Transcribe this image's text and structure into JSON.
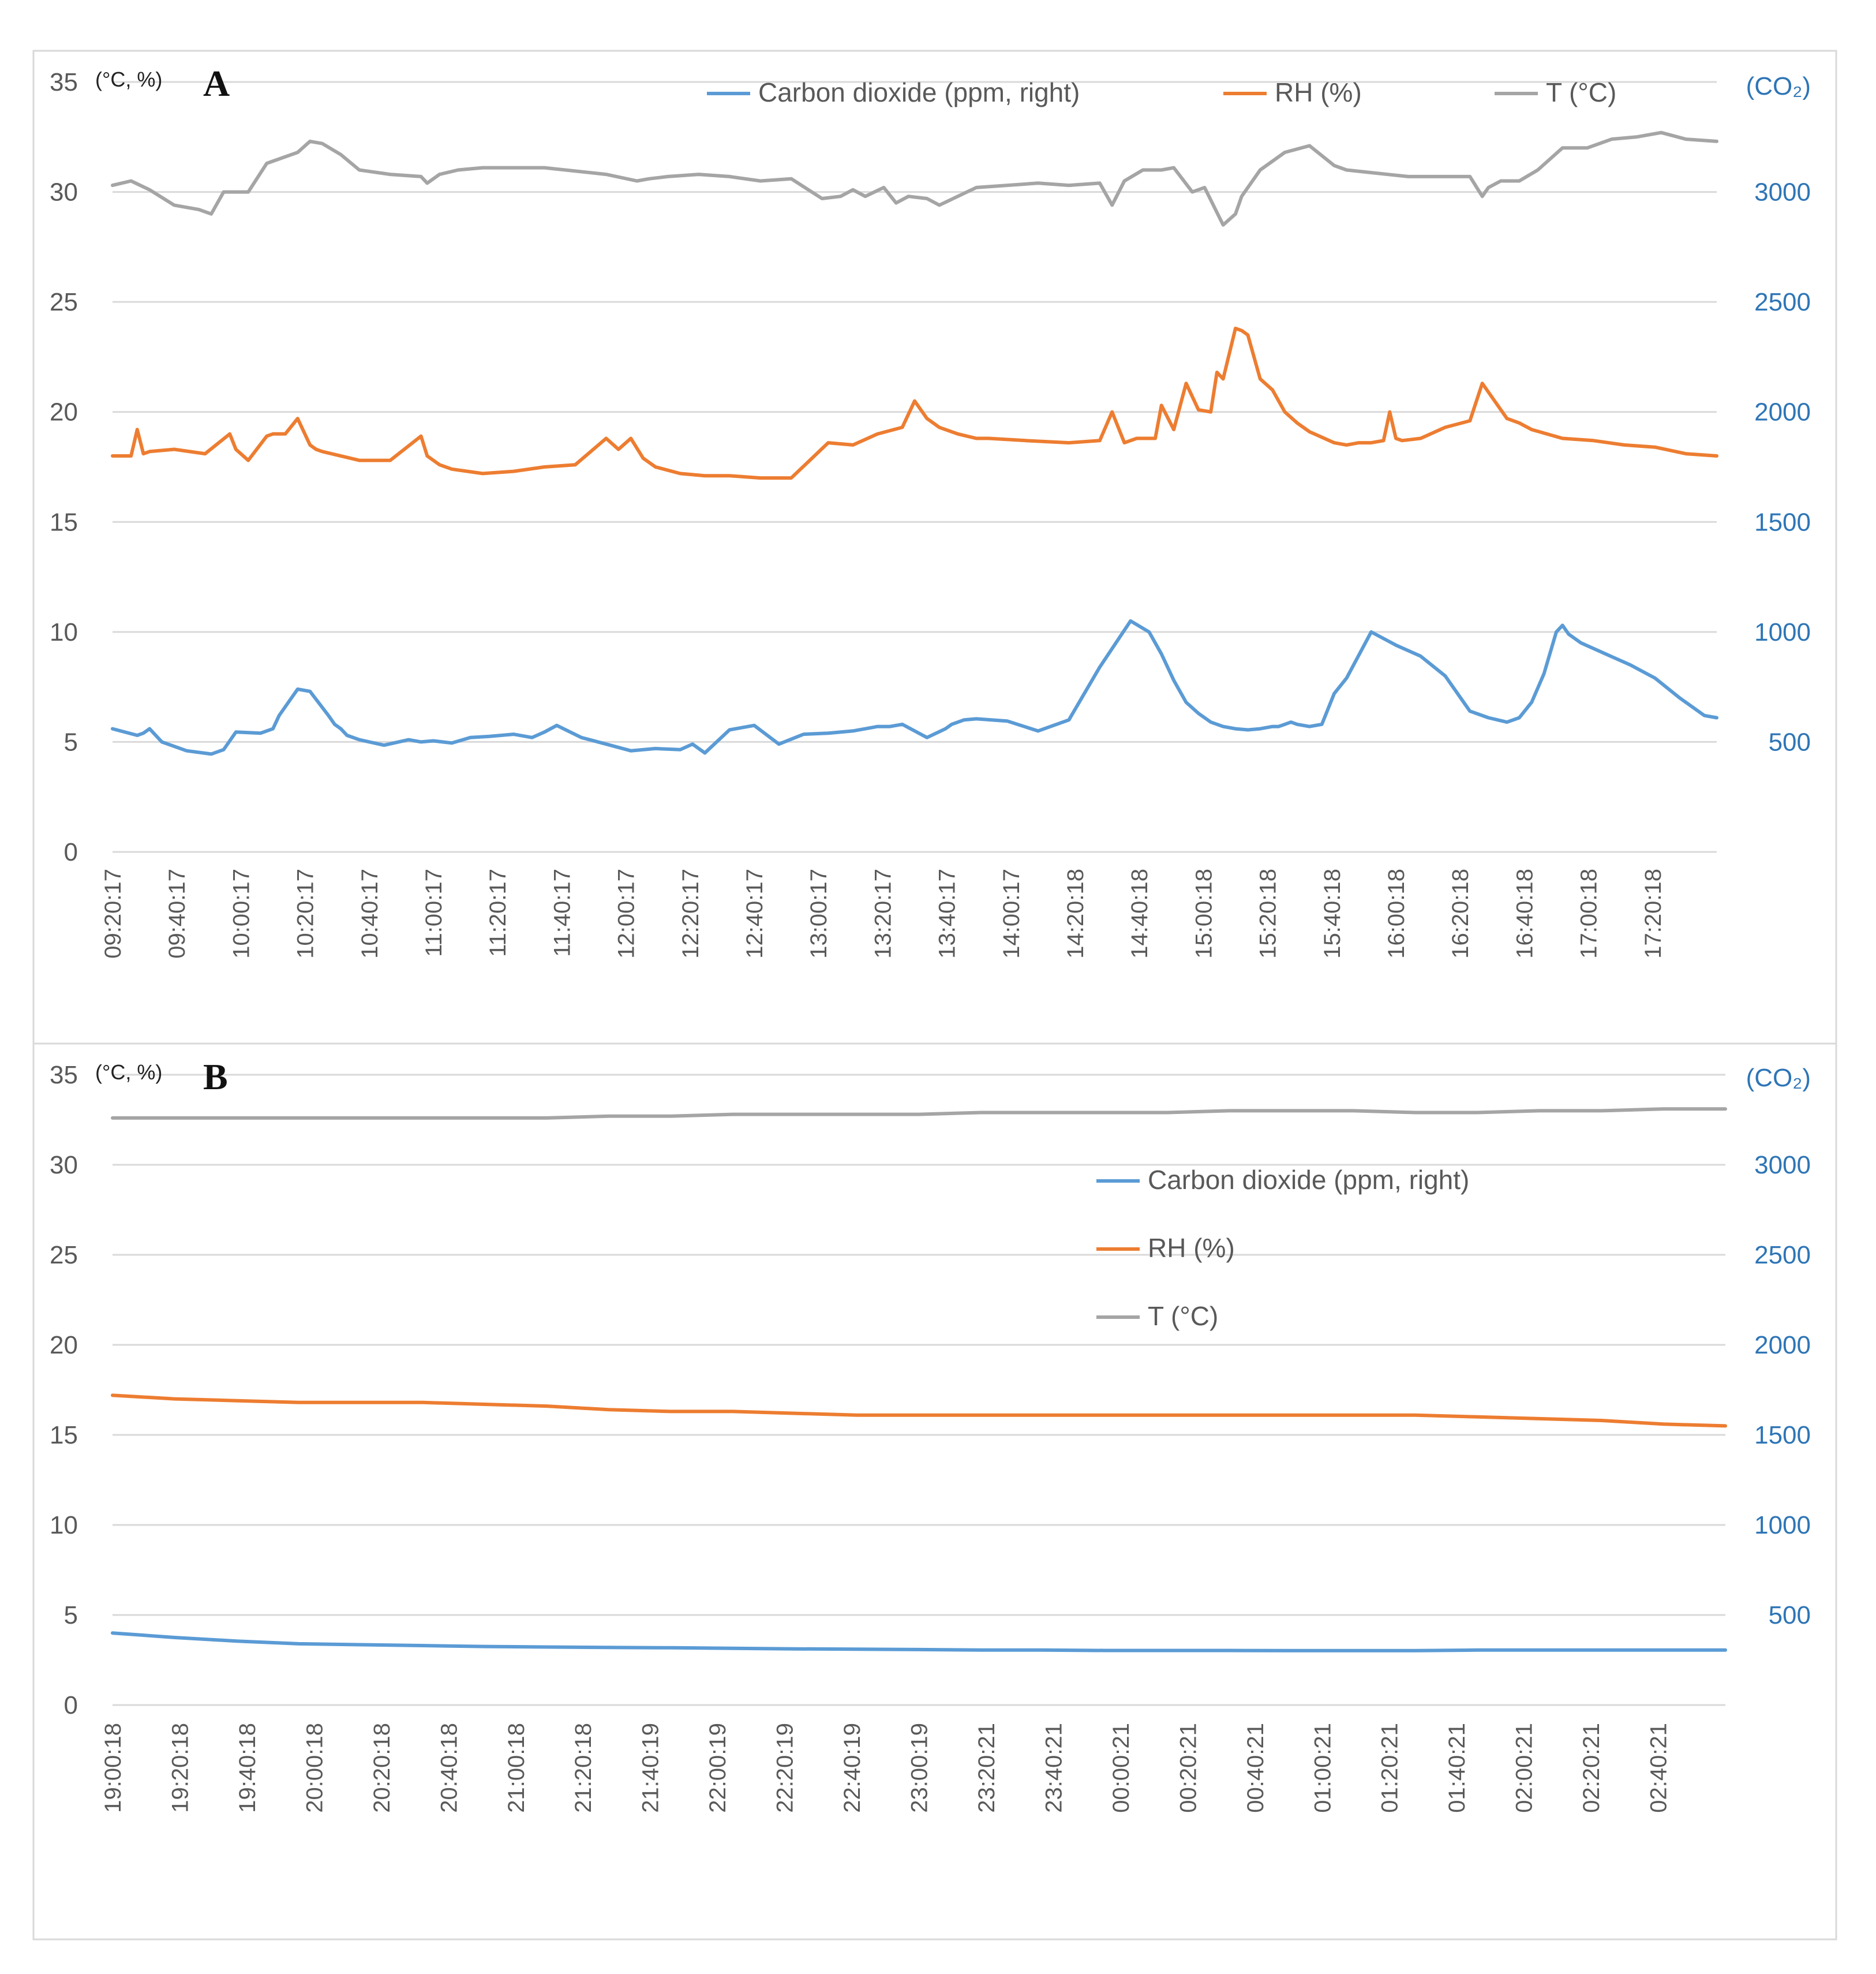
{
  "colors": {
    "co2": "#5B9BD5",
    "rh": "#ED7D31",
    "t": "#A5A5A5",
    "grid": "#D9D9D9",
    "left_axis": "#595959",
    "right_axis": "#2E75B6"
  },
  "chart_data": [
    {
      "type": "line",
      "panel_label": "A",
      "left_unit_label": "(°C, %)",
      "right_unit_label": "(CO₂)",
      "left_ticks": [
        "0",
        "5",
        "10",
        "15",
        "20",
        "25",
        "30",
        "35"
      ],
      "right_ticks": [
        "500",
        "1000",
        "1500",
        "2000",
        "2500",
        "3000"
      ],
      "ylim_left": [
        0,
        35
      ],
      "ylim_right": [
        0,
        3500
      ],
      "x_range": [
        0,
        520
      ],
      "x_unit": "minutes since 09:20:17",
      "x_ticks": [
        "09:20:17",
        "09:40:17",
        "10:00:17",
        "10:20:17",
        "10:40:17",
        "11:00:17",
        "11:20:17",
        "11:40:17",
        "12:00:17",
        "12:20:17",
        "12:40:17",
        "13:00:17",
        "13:20:17",
        "13:40:17",
        "14:00:17",
        "14:20:18",
        "14:40:18",
        "15:00:18",
        "15:20:18",
        "15:40:18",
        "16:00:18",
        "16:20:18",
        "16:40:18",
        "17:00:18",
        "17:20:18"
      ],
      "legend": [
        "Carbon dioxide (ppm, right)",
        "RH (%)",
        "T (°C)"
      ],
      "legend_position": "top-center",
      "series": [
        {
          "name": "Carbon dioxide (ppm, right)",
          "axis": "right",
          "color": "#5B9BD5",
          "x": [
            0,
            8,
            10,
            12,
            16,
            24,
            32,
            36,
            40,
            48,
            52,
            54,
            58,
            60,
            64,
            70,
            72,
            74,
            76,
            80,
            88,
            96,
            100,
            104,
            110,
            116,
            122,
            130,
            136,
            140,
            144,
            152,
            160,
            168,
            176,
            184,
            188,
            192,
            200,
            208,
            216,
            224,
            232,
            240,
            244,
            248,
            252,
            256,
            264,
            270,
            272,
            276,
            280,
            290,
            300,
            310,
            320,
            330,
            336,
            340,
            344,
            348,
            352,
            356,
            360,
            364,
            368,
            372,
            376,
            378,
            380,
            382,
            384,
            388,
            392,
            396,
            400,
            408,
            416,
            424,
            432,
            436,
            440,
            446,
            452,
            456,
            460,
            464,
            468,
            470,
            472,
            476,
            484,
            492,
            500,
            508,
            516,
            520
          ],
          "values": [
            560,
            530,
            540,
            560,
            500,
            460,
            445,
            465,
            545,
            540,
            560,
            620,
            700,
            740,
            730,
            620,
            580,
            560,
            530,
            510,
            485,
            510,
            500,
            505,
            495,
            520,
            525,
            535,
            520,
            545,
            575,
            520,
            490,
            460,
            470,
            465,
            490,
            450,
            555,
            575,
            490,
            535,
            540,
            550,
            560,
            570,
            570,
            580,
            520,
            560,
            580,
            600,
            605,
            595,
            550,
            600,
            840,
            1050,
            1000,
            900,
            780,
            680,
            630,
            590,
            570,
            560,
            555,
            560,
            570,
            570,
            580,
            590,
            580,
            570,
            580,
            720,
            790,
            1000,
            940,
            890,
            800,
            720,
            640,
            610,
            590,
            610,
            680,
            810,
            1000,
            1030,
            990,
            950,
            900,
            850,
            790,
            700,
            620,
            610
          ]
        },
        {
          "name": "RH (%)",
          "axis": "left",
          "color": "#ED7D31",
          "x": [
            0,
            6,
            8,
            10,
            12,
            20,
            30,
            38,
            40,
            44,
            50,
            52,
            56,
            60,
            64,
            66,
            68,
            74,
            80,
            90,
            100,
            102,
            106,
            110,
            120,
            130,
            140,
            150,
            160,
            164,
            168,
            172,
            176,
            184,
            192,
            200,
            210,
            220,
            232,
            240,
            248,
            256,
            260,
            264,
            268,
            274,
            280,
            284,
            296,
            310,
            320,
            324,
            328,
            332,
            338,
            340,
            344,
            348,
            352,
            356,
            358,
            360,
            364,
            366,
            368,
            372,
            376,
            380,
            384,
            388,
            396,
            400,
            404,
            408,
            412,
            414,
            416,
            418,
            424,
            432,
            440,
            444,
            448,
            452,
            456,
            460,
            470,
            480,
            490,
            500,
            510,
            520
          ],
          "values": [
            18.0,
            18.0,
            19.2,
            18.1,
            18.2,
            18.3,
            18.1,
            19.0,
            18.3,
            17.8,
            18.9,
            19.0,
            19.0,
            19.7,
            18.5,
            18.3,
            18.2,
            18.0,
            17.8,
            17.8,
            18.9,
            18.0,
            17.6,
            17.4,
            17.2,
            17.3,
            17.5,
            17.6,
            18.8,
            18.3,
            18.8,
            17.9,
            17.5,
            17.2,
            17.1,
            17.1,
            17.0,
            17.0,
            18.6,
            18.5,
            19.0,
            19.3,
            20.5,
            19.7,
            19.3,
            19.0,
            18.8,
            18.8,
            18.7,
            18.6,
            18.7,
            20.0,
            18.6,
            18.8,
            18.8,
            20.3,
            19.2,
            21.3,
            20.1,
            20.0,
            21.8,
            21.5,
            23.8,
            23.7,
            23.5,
            21.5,
            21.0,
            20.0,
            19.5,
            19.1,
            18.6,
            18.5,
            18.6,
            18.6,
            18.7,
            20.0,
            18.8,
            18.7,
            18.8,
            19.3,
            19.6,
            21.3,
            20.5,
            19.7,
            19.5,
            19.2,
            18.8,
            18.7,
            18.5,
            18.4,
            18.1,
            18.0
          ]
        },
        {
          "name": "T (°C)",
          "axis": "left",
          "color": "#A5A5A5",
          "x": [
            0,
            6,
            12,
            20,
            28,
            32,
            36,
            44,
            50,
            60,
            64,
            68,
            74,
            80,
            90,
            100,
            102,
            106,
            112,
            120,
            140,
            160,
            170,
            174,
            180,
            190,
            200,
            210,
            220,
            230,
            236,
            240,
            244,
            250,
            254,
            258,
            264,
            268,
            280,
            290,
            300,
            310,
            320,
            324,
            328,
            334,
            340,
            344,
            350,
            354,
            360,
            364,
            366,
            372,
            380,
            388,
            396,
            400,
            420,
            430,
            440,
            444,
            446,
            450,
            456,
            462,
            470,
            478,
            486,
            494,
            502,
            510,
            520
          ],
          "values": [
            30.3,
            30.5,
            30.1,
            29.4,
            29.2,
            29.0,
            30.0,
            30.0,
            31.3,
            31.8,
            32.3,
            32.2,
            31.7,
            31.0,
            30.8,
            30.7,
            30.4,
            30.8,
            31.0,
            31.1,
            31.1,
            30.8,
            30.5,
            30.6,
            30.7,
            30.8,
            30.7,
            30.5,
            30.6,
            29.7,
            29.8,
            30.1,
            29.8,
            30.2,
            29.5,
            29.8,
            29.7,
            29.4,
            30.2,
            30.3,
            30.4,
            30.3,
            30.4,
            29.4,
            30.5,
            31.0,
            31.0,
            31.1,
            30.0,
            30.2,
            28.5,
            29.0,
            29.8,
            31.0,
            31.8,
            32.1,
            31.2,
            31.0,
            30.7,
            30.7,
            30.7,
            29.8,
            30.2,
            30.5,
            30.5,
            31.0,
            32.0,
            32.0,
            32.4,
            32.5,
            32.7,
            32.4,
            32.3
          ]
        }
      ]
    },
    {
      "type": "line",
      "panel_label": "B",
      "left_unit_label": "(°C, %)",
      "right_unit_label": "(CO₂)",
      "left_ticks": [
        "0",
        "5",
        "10",
        "15",
        "20",
        "25",
        "30",
        "35"
      ],
      "right_ticks": [
        "500",
        "1000",
        "1500",
        "2000",
        "2500",
        "3000"
      ],
      "ylim_left": [
        0,
        35
      ],
      "ylim_right": [
        0,
        3500
      ],
      "x_range": [
        0,
        520
      ],
      "x_unit": "minutes since 19:00:18",
      "x_ticks": [
        "19:00:18",
        "19:20:18",
        "19:40:18",
        "20:00:18",
        "20:20:18",
        "20:40:18",
        "21:00:18",
        "21:20:18",
        "21:40:19",
        "22:00:19",
        "22:20:19",
        "22:40:19",
        "23:00:19",
        "23:20:21",
        "23:40:21",
        "00:00:21",
        "00:20:21",
        "00:40:21",
        "01:00:21",
        "01:20:21",
        "01:40:21",
        "02:00:21",
        "02:20:21",
        "02:40:21"
      ],
      "legend": [
        "Carbon dioxide (ppm, right)",
        "RH (%)",
        "T (°C)"
      ],
      "legend_position": "center-right",
      "series": [
        {
          "name": "Carbon dioxide (ppm, right)",
          "axis": "right",
          "color": "#5B9BD5",
          "x": [
            0,
            20,
            40,
            60,
            80,
            100,
            120,
            140,
            160,
            180,
            200,
            220,
            240,
            260,
            280,
            300,
            320,
            340,
            360,
            380,
            400,
            420,
            440,
            460,
            480,
            500,
            520
          ],
          "values": [
            400,
            375,
            355,
            340,
            335,
            330,
            325,
            322,
            320,
            318,
            315,
            312,
            310,
            308,
            305,
            305,
            303,
            303,
            303,
            302,
            302,
            302,
            305,
            305,
            305,
            305,
            305
          ]
        },
        {
          "name": "RH (%)",
          "axis": "left",
          "color": "#ED7D31",
          "x": [
            0,
            20,
            40,
            60,
            80,
            100,
            120,
            140,
            160,
            180,
            200,
            220,
            240,
            260,
            280,
            300,
            320,
            340,
            360,
            380,
            400,
            420,
            440,
            460,
            480,
            500,
            520
          ],
          "values": [
            17.2,
            17.0,
            16.9,
            16.8,
            16.8,
            16.8,
            16.7,
            16.6,
            16.4,
            16.3,
            16.3,
            16.2,
            16.1,
            16.1,
            16.1,
            16.1,
            16.1,
            16.1,
            16.1,
            16.1,
            16.1,
            16.1,
            16.0,
            15.9,
            15.8,
            15.6,
            15.5
          ]
        },
        {
          "name": "T (°C)",
          "axis": "left",
          "color": "#A5A5A5",
          "x": [
            0,
            20,
            40,
            60,
            80,
            100,
            120,
            140,
            160,
            180,
            200,
            220,
            240,
            260,
            280,
            300,
            320,
            340,
            360,
            380,
            400,
            420,
            440,
            460,
            480,
            500,
            520
          ],
          "values": [
            32.6,
            32.6,
            32.6,
            32.6,
            32.6,
            32.6,
            32.6,
            32.6,
            32.7,
            32.7,
            32.8,
            32.8,
            32.8,
            32.8,
            32.9,
            32.9,
            32.9,
            32.9,
            33.0,
            33.0,
            33.0,
            32.9,
            32.9,
            33.0,
            33.0,
            33.1,
            33.1
          ]
        }
      ]
    }
  ]
}
